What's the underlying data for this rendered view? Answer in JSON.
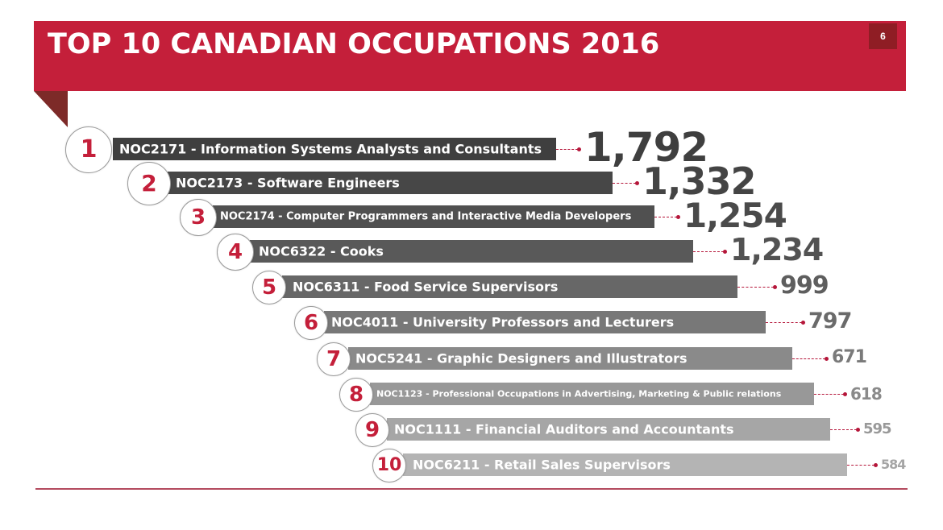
{
  "header": {
    "title": "TOP 10 CANADIAN OCCUPATIONS 2016",
    "page_number": "6"
  },
  "colors": {
    "banner": "#c41f3a",
    "badge": "#8f1d24",
    "fold": "#7d2a28",
    "rank_number": "#c41f3a",
    "connector": "#b5163a"
  },
  "chart_data": {
    "type": "bar",
    "orientation": "horizontal",
    "title": "TOP 10 CANADIAN OCCUPATIONS 2016",
    "xlabel": "",
    "ylabel": "",
    "grid": false,
    "legend": null,
    "categories": [
      "NOC2171 - Information Systems Analysts and Consultants",
      "NOC2173 - Software Engineers",
      "NOC2174 - Computer Programmers and Interactive Media Developers",
      "NOC6322 - Cooks",
      "NOC6311 - Food Service Supervisors",
      "NOC4011 - University Professors and Lecturers",
      "NOC5241 - Graphic Designers and Illustrators",
      "NOC1123 - Professional Occupations in Advertising, Marketing & Public relations",
      "NOC1111 - Financial Auditors and Accountants",
      "NOC6211 - Retail Sales Supervisors"
    ],
    "values": [
      1792,
      1332,
      1254,
      1234,
      999,
      797,
      671,
      618,
      595,
      584
    ]
  },
  "rows": [
    {
      "rank": "1",
      "label": "NOC2171 - Information Systems Analysts and Consultants",
      "value": "1,792"
    },
    {
      "rank": "2",
      "label": "NOC2173 - Software Engineers",
      "value": "1,332"
    },
    {
      "rank": "3",
      "label": "NOC2174 - Computer Programmers and Interactive Media Developers",
      "value": "1,254"
    },
    {
      "rank": "4",
      "label": "NOC6322 - Cooks",
      "value": "1,234"
    },
    {
      "rank": "5",
      "label": "NOC6311 - Food Service Supervisors",
      "value": "999"
    },
    {
      "rank": "6",
      "label": "NOC4011 - University Professors and Lecturers",
      "value": "797"
    },
    {
      "rank": "7",
      "label": "NOC5241 - Graphic Designers and Illustrators",
      "value": "671"
    },
    {
      "rank": "8",
      "label": "NOC1123 - Professional Occupations in Advertising, Marketing & Public relations",
      "value": "618"
    },
    {
      "rank": "9",
      "label": "NOC1111 - Financial Auditors and Accountants",
      "value": "595"
    },
    {
      "rank": "10",
      "label": "NOC6211 - Retail Sales Supervisors",
      "value": "584"
    }
  ]
}
